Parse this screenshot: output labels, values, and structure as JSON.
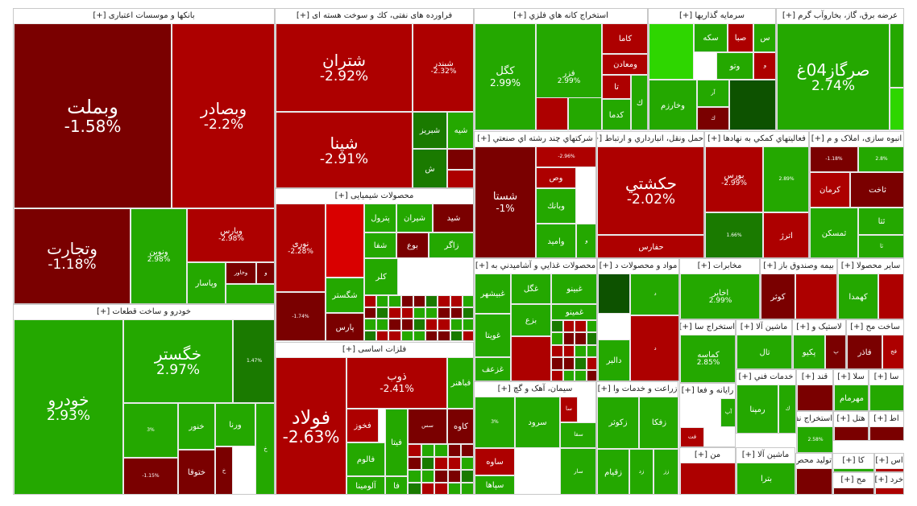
{
  "colors": {
    "dark_red": "#7a0000",
    "red": "#ad0000",
    "bright_red": "#d90000",
    "dark_green": "#1a7a00",
    "green": "#24a800",
    "light_green": "#2ed600",
    "deep_green": "#0d5200"
  },
  "sectors": [
    {
      "title": "بانکها و موسسات اعتباری [+]",
      "tiles": [
        {
          "name": "وبملت",
          "pct": "-1.58%",
          "c": "dark_red",
          "s": "xl"
        },
        {
          "name": "وبصادر",
          "pct": "-2.2%",
          "c": "red",
          "s": "l"
        },
        {
          "name": "وتجارت",
          "pct": "-1.18%",
          "c": "dark_red",
          "s": "l"
        },
        {
          "name": "ونوین",
          "pct": "2.98%",
          "c": "green",
          "s": "s"
        },
        {
          "name": "وپارس",
          "pct": "-2.98%",
          "c": "red",
          "s": "s"
        },
        {
          "name": "وپاسار",
          "pct": "",
          "c": "green",
          "s": "s"
        },
        {
          "name": "وخاور",
          "pct": "",
          "c": "dark_red",
          "s": "xs"
        },
        {
          "name": "و",
          "pct": "",
          "c": "dark_red",
          "s": "xs"
        },
        {
          "name": "",
          "pct": "",
          "c": "green",
          "s": "xs"
        }
      ]
    },
    {
      "title": "فراورده های نفتی، كك و سوخت هسته ای [+]",
      "tiles": [
        {
          "name": "شتران",
          "pct": "-2.92%",
          "c": "red",
          "s": "l"
        },
        {
          "name": "شبندر",
          "pct": "-2.32%",
          "c": "red",
          "s": "s"
        },
        {
          "name": "شپنا",
          "pct": "-2.91%",
          "c": "red",
          "s": "l"
        },
        {
          "name": "شبریز",
          "pct": "",
          "c": "dark_green",
          "s": "s"
        },
        {
          "name": "شیه",
          "pct": "",
          "c": "green",
          "s": "s"
        },
        {
          "name": "ش",
          "pct": "",
          "c": "dark_green",
          "s": "s"
        },
        {
          "name": "",
          "pct": "",
          "c": "dark_red",
          "s": "xs"
        },
        {
          "name": "",
          "pct": "",
          "c": "red",
          "s": "xs"
        }
      ]
    },
    {
      "title": "استخراج كانه هاي فلزي [+]",
      "tiles": [
        {
          "name": "كگل",
          "pct": "2.99%",
          "c": "green",
          "s": "m"
        },
        {
          "name": "فزر",
          "pct": "2.99%",
          "c": "green",
          "s": "s"
        },
        {
          "name": "كاما",
          "pct": "",
          "c": "red",
          "s": "s"
        },
        {
          "name": "ومعادن",
          "pct": "",
          "c": "red",
          "s": "s"
        },
        {
          "name": "تا",
          "pct": "",
          "c": "red",
          "s": "s"
        },
        {
          "name": "كدما",
          "pct": "",
          "c": "green",
          "s": "s"
        },
        {
          "name": "ك",
          "pct": "",
          "c": "green",
          "s": "s"
        },
        {
          "name": "",
          "pct": "",
          "c": "red",
          "s": "xs"
        },
        {
          "name": "",
          "pct": "",
          "c": "green",
          "s": "xs"
        }
      ]
    },
    {
      "title": "سرمایه گذاریها [+]",
      "tiles": [
        {
          "name": "سكه",
          "pct": "",
          "c": "green",
          "s": "s"
        },
        {
          "name": "صبا",
          "pct": "",
          "c": "red",
          "s": "s"
        },
        {
          "name": "س",
          "pct": "",
          "c": "green",
          "s": "s"
        },
        {
          "name": "وتو",
          "pct": "",
          "c": "green",
          "s": "s"
        },
        {
          "name": "و",
          "pct": "",
          "c": "red",
          "s": "xs"
        },
        {
          "name": "وخارزم",
          "pct": "",
          "c": "green",
          "s": "s"
        },
        {
          "name": "آر",
          "pct": "",
          "c": "green",
          "s": "xs"
        },
        {
          "name": "ك",
          "pct": "",
          "c": "dark_red",
          "s": "xs"
        },
        {
          "name": "",
          "pct": "",
          "c": "light_green",
          "s": "xs"
        },
        {
          "name": "",
          "pct": "",
          "c": "deep_green",
          "s": "xs"
        }
      ]
    },
    {
      "title": "عرضه برق، گاز، بخاروآب گرم [+]",
      "tiles": [
        {
          "name": "صرگاز04غ",
          "pct": "2.74%",
          "c": "green",
          "s": "l"
        },
        {
          "name": "",
          "pct": "",
          "c": "green",
          "s": "xs"
        },
        {
          "name": "",
          "pct": "",
          "c": "light_green",
          "s": "xs"
        }
      ]
    },
    {
      "title": "شركتهاي چند رشته اي صنعتي [+]",
      "tiles": [
        {
          "name": "شستا",
          "pct": "-1%",
          "c": "dark_red",
          "s": "m"
        },
        {
          "name": "وبانك",
          "pct": "",
          "c": "green",
          "s": "s"
        },
        {
          "name": "وص",
          "pct": "",
          "c": "red",
          "s": "s"
        },
        {
          "name": "وامید",
          "pct": "",
          "c": "green",
          "s": "s"
        },
        {
          "name": "و",
          "pct": "",
          "c": "green",
          "s": "xs"
        },
        {
          "name": "",
          "pct": "-2.96%",
          "c": "red",
          "s": "xs"
        }
      ]
    },
    {
      "title": "حمل ونقل، انبارداري و ارتباط [+]",
      "tiles": [
        {
          "name": "حكشتي",
          "pct": "-2.02%",
          "c": "red",
          "s": "l"
        },
        {
          "name": "حفارس",
          "pct": "",
          "c": "red",
          "s": "s"
        },
        {
          "name": "",
          "pct": "",
          "c": "green",
          "s": "xs"
        },
        {
          "name": "",
          "pct": "",
          "c": "dark_red",
          "s": "xs"
        }
      ]
    },
    {
      "title": "فعاليتهاي كمكي به نهادها [+]",
      "tiles": [
        {
          "name": "بورس",
          "pct": "-2.99%",
          "c": "red",
          "s": "s"
        },
        {
          "name": "",
          "pct": "2.89%",
          "c": "green",
          "s": "xs"
        },
        {
          "name": "اترژ",
          "pct": "",
          "c": "red",
          "s": "s"
        },
        {
          "name": "",
          "pct": "1.66%",
          "c": "dark_green",
          "s": "xs"
        }
      ]
    },
    {
      "title": "انبوه سازی، املاک و م [+]",
      "tiles": [
        {
          "name": "",
          "pct": "-1.18%",
          "c": "dark_red",
          "s": "xs"
        },
        {
          "name": "",
          "pct": "2.8%",
          "c": "green",
          "s": "xs"
        },
        {
          "name": "ثاخت",
          "pct": "",
          "c": "dark_red",
          "s": "s"
        },
        {
          "name": "كرمان",
          "pct": "",
          "c": "red",
          "s": "s"
        },
        {
          "name": "ثتا",
          "pct": "",
          "c": "green",
          "s": "s"
        },
        {
          "name": "ثمسكن",
          "pct": "",
          "c": "green",
          "s": "s"
        },
        {
          "name": "ثا",
          "pct": "",
          "c": "green",
          "s": "xs"
        }
      ]
    },
    {
      "title": "محصولات شیمیایی [+]",
      "tiles": [
        {
          "name": "نوری",
          "pct": "-2.28%",
          "c": "red",
          "s": "s"
        },
        {
          "name": "پترول",
          "pct": "",
          "c": "green",
          "s": "s"
        },
        {
          "name": "شیران",
          "pct": "",
          "c": "green",
          "s": "s"
        },
        {
          "name": "شيد",
          "pct": "",
          "c": "dark_red",
          "s": "s"
        },
        {
          "name": "شگستر",
          "pct": "",
          "c": "green",
          "s": "s"
        },
        {
          "name": "پارس",
          "pct": "",
          "c": "dark_red",
          "s": "s"
        },
        {
          "name": "شفا",
          "pct": "",
          "c": "green",
          "s": "s"
        },
        {
          "name": "بوع",
          "pct": "",
          "c": "dark_red",
          "s": "s"
        },
        {
          "name": "زاگر",
          "pct": "",
          "c": "green",
          "s": "s"
        },
        {
          "name": "کلر",
          "pct": "",
          "c": "green",
          "s": "s"
        },
        {
          "name": "",
          "pct": "",
          "c": "bright_red",
          "s": "xs"
        },
        {
          "name": "",
          "pct": "-1.74%",
          "c": "dark_red",
          "s": "xs"
        }
      ]
    },
    {
      "title": "محصولات غذايي و آشاميدني به [+]",
      "tiles": [
        {
          "name": "غگل",
          "pct": "",
          "c": "green",
          "s": "s"
        },
        {
          "name": "غبيشهر",
          "pct": "",
          "c": "green",
          "s": "s"
        },
        {
          "name": "غبینو",
          "pct": "",
          "c": "green",
          "s": "s"
        },
        {
          "name": "غمینو",
          "pct": "",
          "c": "green",
          "s": "s"
        },
        {
          "name": "غويتا",
          "pct": "",
          "c": "green",
          "s": "s"
        },
        {
          "name": "بزع",
          "pct": "",
          "c": "green",
          "s": "s"
        },
        {
          "name": "غزعف",
          "pct": "",
          "c": "green",
          "s": "s"
        },
        {
          "name": "",
          "pct": "",
          "c": "red",
          "s": "xs"
        }
      ]
    },
    {
      "title": "مواد و محصولات د [+]",
      "tiles": [
        {
          "name": "دالبر",
          "pct": "",
          "c": "green",
          "s": "s"
        },
        {
          "name": "",
          "pct": "",
          "c": "deep_green",
          "s": "xs"
        },
        {
          "name": "د",
          "pct": "",
          "c": "green",
          "s": "xs"
        },
        {
          "name": "د",
          "pct": "",
          "c": "red",
          "s": "xs"
        }
      ]
    },
    {
      "title": "مخابرات [+]",
      "tiles": [
        {
          "name": "اخابر",
          "pct": "2.99%",
          "c": "green",
          "s": "s"
        },
        {
          "name": "",
          "pct": "",
          "c": "light_green",
          "s": "xs"
        }
      ]
    },
    {
      "title": "بیمه وصندوق باز [+]",
      "tiles": [
        {
          "name": "کوثر",
          "pct": "",
          "c": "dark_red",
          "s": "s"
        },
        {
          "name": "",
          "pct": "",
          "c": "red",
          "s": "xs"
        }
      ]
    },
    {
      "title": "سایر محصولا [+]",
      "tiles": [
        {
          "name": "کهمدا",
          "pct": "",
          "c": "green",
          "s": "s"
        },
        {
          "name": "",
          "pct": "",
          "c": "red",
          "s": "xs"
        }
      ]
    },
    {
      "title": "خودرو و ساخت قطعات [+]",
      "tiles": [
        {
          "name": "خودرو",
          "pct": "2.93%",
          "c": "green",
          "s": "l"
        },
        {
          "name": "خگستر",
          "pct": "2.97%",
          "c": "green",
          "s": "l"
        },
        {
          "name": "",
          "pct": "1.47%",
          "c": "dark_green",
          "s": "xs"
        },
        {
          "name": "",
          "pct": "3%",
          "c": "green",
          "s": "xs"
        },
        {
          "name": "خنور",
          "pct": "",
          "c": "green",
          "s": "s"
        },
        {
          "name": "ورنا",
          "pct": "",
          "c": "green",
          "s": "s"
        },
        {
          "name": "ختوقا",
          "pct": "",
          "c": "dark_red",
          "s": "s"
        },
        {
          "name": "",
          "pct": "-1.15%",
          "c": "dark_red",
          "s": "xs"
        },
        {
          "name": "خ",
          "pct": "",
          "c": "dark_red",
          "s": "xs"
        },
        {
          "name": "خ",
          "pct": "",
          "c": "green",
          "s": "xs"
        }
      ]
    },
    {
      "title": "فلزات اساسی [+]",
      "tiles": [
        {
          "name": "فولاد",
          "pct": "-2.63%",
          "c": "red",
          "s": "xl"
        },
        {
          "name": "ذوب",
          "pct": "-2.41%",
          "c": "red",
          "s": "m"
        },
        {
          "name": "فخوز",
          "pct": "",
          "c": "red",
          "s": "s"
        },
        {
          "name": "فالوم",
          "pct": "",
          "c": "green",
          "s": "s"
        },
        {
          "name": "فباهنر",
          "pct": "",
          "c": "green",
          "s": "s"
        },
        {
          "name": "فيتا",
          "pct": "",
          "c": "green",
          "s": "s"
        },
        {
          "name": "كاوه",
          "pct": "",
          "c": "dark_red",
          "s": "s"
        },
        {
          "name": "آلومینا",
          "pct": "",
          "c": "green",
          "s": "s"
        },
        {
          "name": "فا",
          "pct": "",
          "c": "green",
          "s": "s"
        },
        {
          "name": "سس",
          "pct": "",
          "c": "dark_red",
          "s": "xs"
        }
      ]
    },
    {
      "title": "سیمان، آهک و گچ [+]",
      "tiles": [
        {
          "name": "سرود",
          "pct": "",
          "c": "green",
          "s": "s"
        },
        {
          "name": "ساوه",
          "pct": "",
          "c": "red",
          "s": "s"
        },
        {
          "name": "سپاها",
          "pct": "",
          "c": "green",
          "s": "s"
        },
        {
          "name": "سا",
          "pct": "",
          "c": "red",
          "s": "xs"
        },
        {
          "name": "سقا",
          "pct": "",
          "c": "green",
          "s": "xs"
        },
        {
          "name": "سار",
          "pct": "",
          "c": "green",
          "s": "xs"
        },
        {
          "name": "",
          "pct": "3%",
          "c": "green",
          "s": "xs"
        }
      ]
    },
    {
      "title": "زراعت و خدمات وا [+]",
      "tiles": [
        {
          "name": "زكوثر",
          "pct": "",
          "c": "green",
          "s": "s"
        },
        {
          "name": "زفكا",
          "pct": "",
          "c": "green",
          "s": "s"
        },
        {
          "name": "زقيام",
          "pct": "",
          "c": "green",
          "s": "s"
        },
        {
          "name": "زد",
          "pct": "",
          "c": "green",
          "s": "xs"
        },
        {
          "name": "زز",
          "pct": "",
          "c": "green",
          "s": "xs"
        }
      ]
    },
    {
      "title": "استخراج سا [+]",
      "tiles": [
        {
          "name": "كماسه",
          "pct": "2.85%",
          "c": "green",
          "s": "s"
        }
      ]
    },
    {
      "title": "ماشین آلا [+]",
      "tiles": [
        {
          "name": "تال",
          "pct": "",
          "c": "green",
          "s": "s"
        }
      ]
    },
    {
      "title": "لاستیک و [+]",
      "tiles": [
        {
          "name": "پكيو",
          "pct": "",
          "c": "green",
          "s": "s"
        },
        {
          "name": "پ",
          "pct": "",
          "c": "dark_red",
          "s": "xs"
        }
      ]
    },
    {
      "title": "ساخت مح [+]",
      "tiles": [
        {
          "name": "فاذر",
          "pct": "",
          "c": "dark_red",
          "s": "s"
        },
        {
          "name": "فج",
          "pct": "",
          "c": "red",
          "s": "xs"
        }
      ]
    },
    {
      "title": "رايانه و فعا [+]",
      "tiles": [
        {
          "name": "آپ",
          "pct": "",
          "c": "green",
          "s": "xs"
        },
        {
          "name": "فت",
          "pct": "",
          "c": "red",
          "s": "xs"
        }
      ]
    },
    {
      "title": "خدمات فني [+]",
      "tiles": [
        {
          "name": "رمپنا",
          "pct": "",
          "c": "green",
          "s": "s"
        },
        {
          "name": "ك",
          "pct": "",
          "c": "green",
          "s": "xs"
        }
      ]
    },
    {
      "title": "قند [+]",
      "tiles": [
        {
          "name": "",
          "pct": "",
          "c": "dark_red",
          "s": "xs"
        }
      ]
    },
    {
      "title": "سلا [+]",
      "tiles": [
        {
          "name": "مهرمام",
          "pct": "",
          "c": "green",
          "s": "s"
        }
      ]
    },
    {
      "title": "سا [+]",
      "tiles": [
        {
          "name": "",
          "pct": "",
          "c": "green",
          "s": "xs"
        }
      ]
    },
    {
      "title": "استخراج نف [+]",
      "tiles": [
        {
          "name": "",
          "pct": "2.58%",
          "c": "green",
          "s": "xs"
        }
      ]
    },
    {
      "title": "هتل [+]",
      "tiles": [
        {
          "name": "",
          "pct": "",
          "c": "dark_red",
          "s": "xs"
        }
      ]
    },
    {
      "title": "اط [+]",
      "tiles": [
        {
          "name": "",
          "pct": "",
          "c": "dark_red",
          "s": "xs"
        }
      ]
    },
    {
      "title": "من [+]",
      "tiles": [
        {
          "name": "",
          "pct": "",
          "c": "red",
          "s": "xs"
        }
      ]
    },
    {
      "title": "ماشین آلا [+]",
      "tiles": [
        {
          "name": "بترا",
          "pct": "",
          "c": "green",
          "s": "s"
        }
      ]
    },
    {
      "title": "تولید محص [+]",
      "tiles": [
        {
          "name": "",
          "pct": "",
          "c": "dark_red",
          "s": "xs"
        }
      ]
    },
    {
      "title": "كا [+]",
      "tiles": [
        {
          "name": "",
          "pct": "",
          "c": "green",
          "s": "xs"
        }
      ]
    },
    {
      "title": "اس [+]",
      "tiles": [
        {
          "name": "",
          "pct": "",
          "c": "red",
          "s": "xs"
        }
      ]
    },
    {
      "title": "مح [+]",
      "tiles": [
        {
          "name": "",
          "pct": "",
          "c": "dark_red",
          "s": "xs"
        }
      ]
    },
    {
      "title": "خرد [+]",
      "tiles": [
        {
          "name": "",
          "pct": "",
          "c": "red",
          "s": "xs"
        }
      ]
    },
    {
      "title": "[+]",
      "tiles": [
        {
          "name": "",
          "pct": "",
          "c": "green",
          "s": "xs"
        }
      ]
    }
  ]
}
